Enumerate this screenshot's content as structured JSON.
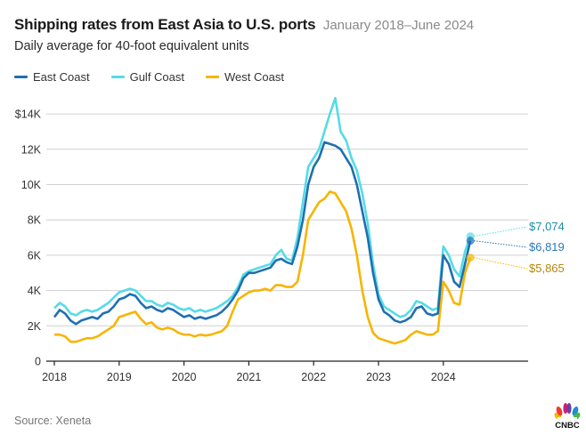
{
  "header": {
    "title": "Shipping rates from East Asia to U.S. ports",
    "date_range": "January 2018–June 2024",
    "subtitle": "Daily average for 40-foot equivalent units"
  },
  "footer": {
    "source": "Source: Xeneta",
    "logo_text": "CNBC"
  },
  "colors": {
    "east": "#1f6fb0",
    "gulf": "#55dbe8",
    "west": "#f7b500",
    "east_label": "#2a78b8",
    "gulf_label": "#1b8fa3",
    "west_label": "#b8860b",
    "grid": "#d0d0d0",
    "axis": "#222222"
  },
  "chart_data": {
    "type": "line",
    "title": "Shipping rates from East Asia to U.S. ports",
    "subtitle": "Daily average for 40-foot equivalent units",
    "xlabel": "",
    "ylabel": "",
    "x_start": "2018-01",
    "x_step": "month",
    "xlim": [
      2018.0,
      2024.55
    ],
    "ylim": [
      0,
      14000
    ],
    "x_ticks": [
      2018,
      2019,
      2020,
      2021,
      2022,
      2023,
      2024
    ],
    "x_tick_labels": [
      "2018",
      "2019",
      "2020",
      "2021",
      "2022",
      "2023",
      "2024"
    ],
    "y_ticks": [
      0,
      2000,
      4000,
      6000,
      8000,
      10000,
      12000,
      14000
    ],
    "y_tick_labels": [
      "0",
      "2K",
      "4K",
      "6K",
      "8K",
      "10K",
      "12K",
      "$14K"
    ],
    "grid": true,
    "legend_position": "top-left",
    "series": [
      {
        "name": "East Coast",
        "key": "east",
        "end_label": "$6,819",
        "end_value": 6819,
        "values": [
          2500,
          2900,
          2700,
          2300,
          2100,
          2300,
          2400,
          2500,
          2400,
          2700,
          2800,
          3100,
          3500,
          3600,
          3800,
          3700,
          3300,
          3000,
          3100,
          2900,
          2800,
          3000,
          2900,
          2700,
          2500,
          2600,
          2400,
          2500,
          2400,
          2500,
          2600,
          2800,
          3100,
          3500,
          4000,
          4700,
          5000,
          5000,
          5100,
          5200,
          5300,
          5700,
          5800,
          5600,
          5500,
          6500,
          8000,
          10000,
          11000,
          11500,
          12400,
          12300,
          12200,
          12000,
          11500,
          11000,
          10000,
          8500,
          7000,
          5000,
          3500,
          2800,
          2600,
          2300,
          2200,
          2300,
          2500,
          3000,
          3100,
          2700,
          2600,
          2700,
          6000,
          5500,
          4500,
          4200,
          5500,
          6819
        ]
      },
      {
        "name": "Gulf Coast",
        "key": "gulf",
        "end_label": "$7,074",
        "end_value": 7074,
        "values": [
          3000,
          3300,
          3100,
          2700,
          2600,
          2800,
          2900,
          2800,
          2900,
          3100,
          3300,
          3600,
          3900,
          4000,
          4100,
          4000,
          3700,
          3400,
          3400,
          3200,
          3100,
          3300,
          3200,
          3000,
          2900,
          3000,
          2800,
          2900,
          2800,
          2900,
          3000,
          3200,
          3400,
          3700,
          4200,
          4900,
          5100,
          5200,
          5300,
          5400,
          5500,
          6000,
          6300,
          5800,
          5700,
          7000,
          9000,
          11000,
          11500,
          12000,
          13000,
          14000,
          14900,
          13000,
          12500,
          11500,
          10800,
          9500,
          7800,
          5500,
          3800,
          3100,
          2900,
          2700,
          2500,
          2600,
          2900,
          3400,
          3300,
          3100,
          2900,
          3000,
          6500,
          6000,
          5200,
          4800,
          6200,
          7074
        ]
      },
      {
        "name": "West Coast",
        "key": "west",
        "end_label": "$5,865",
        "end_value": 5865,
        "values": [
          1500,
          1500,
          1400,
          1100,
          1100,
          1200,
          1300,
          1300,
          1400,
          1600,
          1800,
          2000,
          2500,
          2600,
          2700,
          2800,
          2400,
          2100,
          2200,
          1900,
          1800,
          1900,
          1800,
          1600,
          1500,
          1500,
          1400,
          1500,
          1450,
          1500,
          1600,
          1700,
          2000,
          2800,
          3500,
          3700,
          3900,
          4000,
          4000,
          4100,
          4000,
          4300,
          4300,
          4200,
          4200,
          4500,
          6000,
          8000,
          8500,
          9000,
          9200,
          9600,
          9500,
          9000,
          8500,
          7500,
          6000,
          4000,
          2500,
          1600,
          1300,
          1200,
          1100,
          1000,
          1100,
          1200,
          1500,
          1700,
          1600,
          1500,
          1500,
          1700,
          4500,
          4000,
          3300,
          3200,
          5000,
          5865
        ]
      }
    ]
  },
  "legend": {
    "items": [
      {
        "label": "East Coast",
        "key": "east"
      },
      {
        "label": "Gulf Coast",
        "key": "gulf"
      },
      {
        "label": "West Coast",
        "key": "west"
      }
    ]
  }
}
